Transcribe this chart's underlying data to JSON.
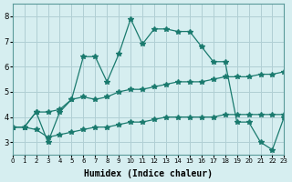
{
  "xlabel": "Humidex (Indice chaleur)",
  "ylabel": "",
  "bg_color": "#d6eef0",
  "grid_color": "#b0cfd4",
  "line_color": "#1a7a6e",
  "xlim": [
    0,
    23
  ],
  "ylim": [
    2.5,
    8.5
  ],
  "xticks": [
    0,
    1,
    2,
    3,
    4,
    5,
    6,
    7,
    8,
    9,
    10,
    11,
    12,
    13,
    14,
    15,
    16,
    17,
    18,
    19,
    20,
    21,
    22,
    23
  ],
  "yticks": [
    3,
    4,
    5,
    6,
    7,
    8
  ],
  "series": [
    [
      3.6,
      3.6,
      4.2,
      3.0,
      4.2,
      4.7,
      6.4,
      6.4,
      5.4,
      6.5,
      7.9,
      6.9,
      7.5,
      7.5,
      7.4,
      7.4,
      6.8,
      6.2,
      6.2,
      3.8,
      3.8,
      3.0,
      2.7,
      4.0
    ],
    [
      3.6,
      3.6,
      4.2,
      4.2,
      4.3,
      4.7,
      4.8,
      4.7,
      4.8,
      5.0,
      5.1,
      5.1,
      5.2,
      5.3,
      5.4,
      5.4,
      5.4,
      5.5,
      5.6,
      5.6,
      5.6,
      5.7,
      5.7,
      5.8
    ],
    [
      3.6,
      3.6,
      3.5,
      3.2,
      3.3,
      3.4,
      3.5,
      3.6,
      3.6,
      3.7,
      3.8,
      3.8,
      3.9,
      4.0,
      4.0,
      4.0,
      4.0,
      4.0,
      4.1,
      4.1,
      4.1,
      4.1,
      4.1,
      4.1
    ]
  ]
}
